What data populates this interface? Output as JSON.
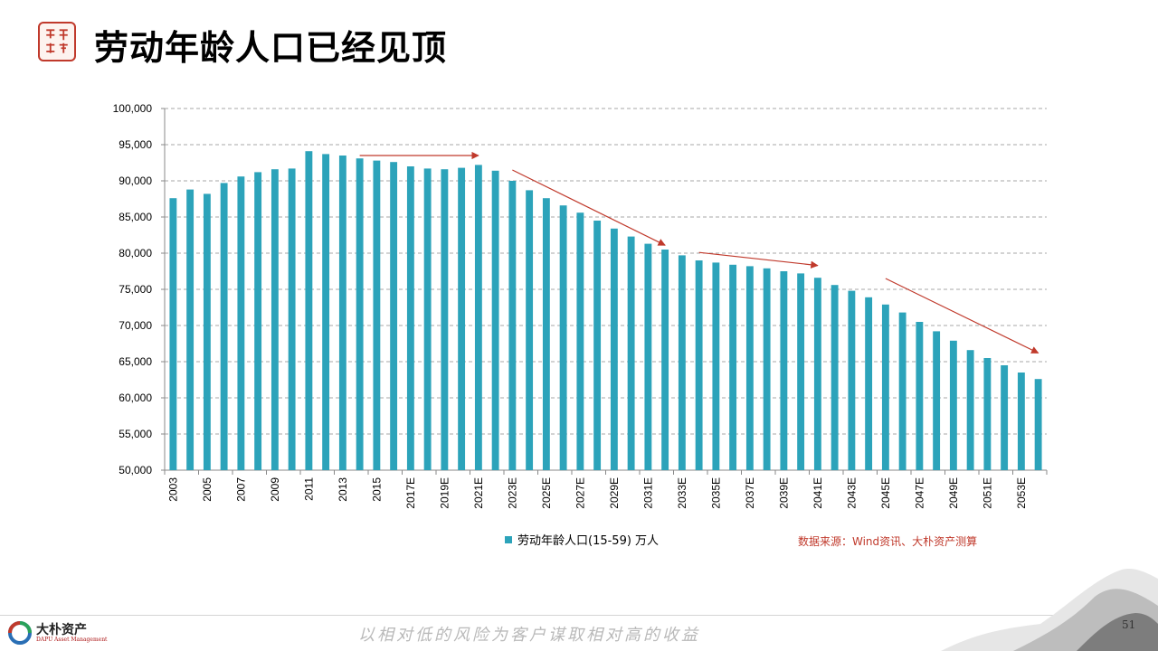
{
  "header": {
    "title": "劳动年龄人口已经见顶",
    "seal_text": "大朴资产"
  },
  "chart_data": {
    "type": "bar",
    "categories": [
      "2003",
      "2004",
      "2005",
      "2006",
      "2007",
      "2008",
      "2009",
      "2010",
      "2011",
      "2012",
      "2013",
      "2014",
      "2015",
      "2016",
      "2017E",
      "2018E",
      "2019E",
      "2020E",
      "2021E",
      "2022E",
      "2023E",
      "2024E",
      "2025E",
      "2026E",
      "2027E",
      "2028E",
      "2029E",
      "2030E",
      "2031E",
      "2032E",
      "2033E",
      "2034E",
      "2035E",
      "2036E",
      "2037E",
      "2038E",
      "2039E",
      "2040E",
      "2041E",
      "2042E",
      "2043E",
      "2044E",
      "2045E",
      "2046E",
      "2047E",
      "2048E",
      "2049E",
      "2050E",
      "2051E",
      "2052E",
      "2053E",
      "2054E"
    ],
    "tick_labels": [
      "2003",
      "2005",
      "2007",
      "2009",
      "2011",
      "2013",
      "2015",
      "2017E",
      "2019E",
      "2021E",
      "2023E",
      "2025E",
      "2027E",
      "2029E",
      "2031E",
      "2033E",
      "2035E",
      "2037E",
      "2039E",
      "2041E",
      "2043E",
      "2045E",
      "2047E",
      "2049E",
      "2051E",
      "2053E"
    ],
    "series": [
      {
        "name": "劳动年龄人口(15-59)  万人",
        "color": "#2ca3ba",
        "values": [
          87600,
          88800,
          88200,
          89700,
          90600,
          91200,
          91600,
          91700,
          94100,
          93700,
          93500,
          93100,
          92800,
          92600,
          92000,
          91700,
          91600,
          91800,
          92200,
          91400,
          90000,
          88700,
          87600,
          86600,
          85600,
          84500,
          83400,
          82300,
          81300,
          80500,
          79700,
          79000,
          78700,
          78400,
          78200,
          77900,
          77500,
          77200,
          76600,
          75600,
          74800,
          73900,
          72900,
          71800,
          70500,
          69200,
          67900,
          66600,
          65500,
          64500,
          63500,
          62600
        ]
      }
    ],
    "yticks": [
      "50,000",
      "55,000",
      "60,000",
      "65,000",
      "70,000",
      "75,000",
      "80,000",
      "85,000",
      "90,000",
      "95,000",
      "100,000"
    ],
    "ylim": [
      50000,
      100000
    ],
    "grid": true,
    "legend_position": "bottom",
    "trend_arrows": [
      {
        "from": {
          "x": "2014",
          "y": 93500
        },
        "to": {
          "x": "2021E",
          "y": 93500
        }
      },
      {
        "from": {
          "x": "2023E",
          "y": 91500
        },
        "to": {
          "x": "2032E",
          "y": 81100
        }
      },
      {
        "from": {
          "x": "2034E",
          "y": 80100
        },
        "to": {
          "x": "2041E",
          "y": 78300
        }
      },
      {
        "from": {
          "x": "2045E",
          "y": 76500
        },
        "to": {
          "x": "2054E",
          "y": 66200
        }
      }
    ],
    "arrow_color": "#c0392b"
  },
  "source": "数据来源：Wind资讯、大朴资产测算",
  "footer": {
    "logo_name": "大朴资产",
    "logo_sub": "DAPU Asset Management",
    "slogan": "以相对低的风险为客户谋取相对高的收益",
    "page_number": "51"
  }
}
